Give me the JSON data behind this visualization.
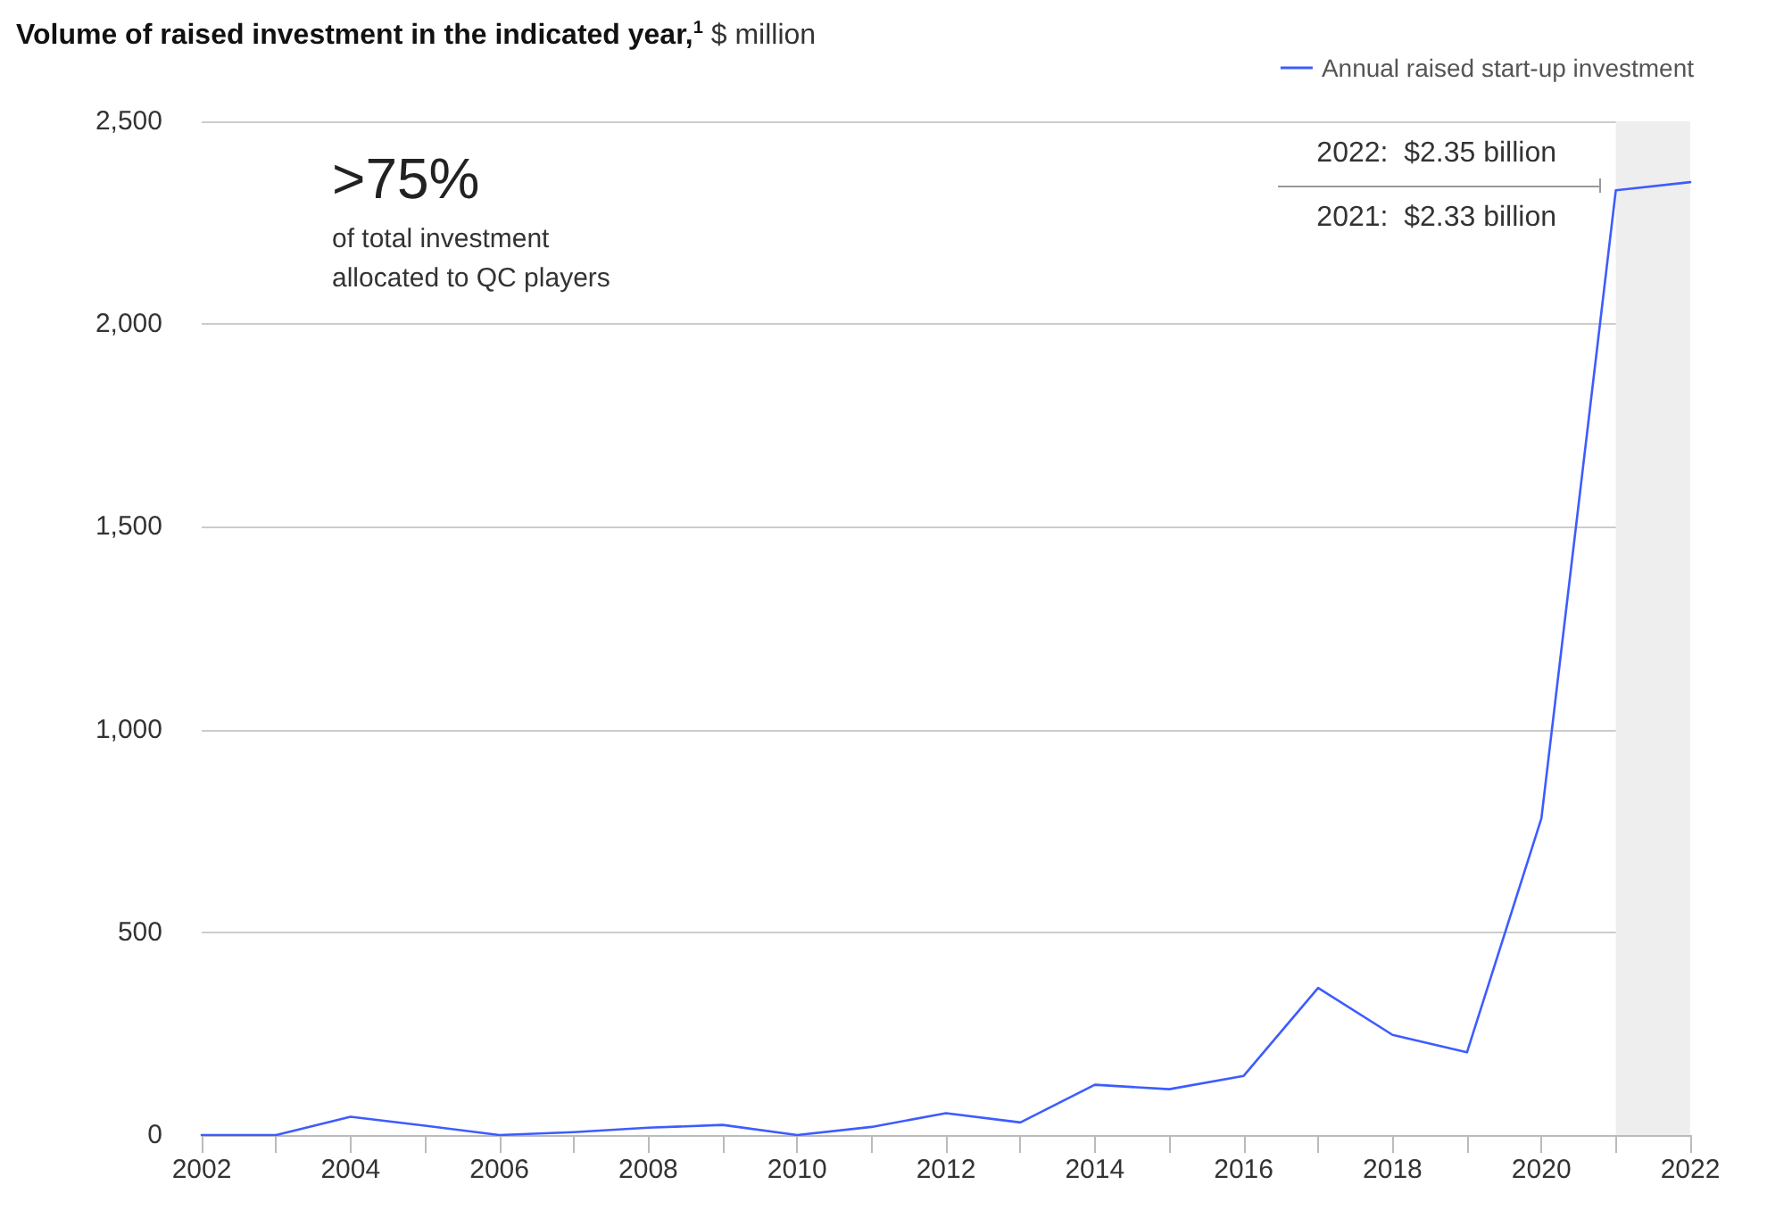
{
  "chart_data": {
    "type": "line",
    "title": "Volume of raised investment in the indicated year,$^{1}$",
    "subtitle": "$ million",
    "x": [
      2002,
      2003,
      2004,
      2005,
      2006,
      2007,
      2008,
      2009,
      2010,
      2011,
      2012,
      2013,
      2014,
      2015,
      2016,
      2017,
      2018,
      2019,
      2020,
      2021,
      2022
    ],
    "series": [
      {
        "name": "Annual raised start-up investment",
        "color": "#3d5cff",
        "values": [
          0,
          0,
          45,
          23,
          0,
          7,
          18,
          25,
          0,
          20,
          54,
          31,
          124,
          113,
          146,
          363,
          247,
          204,
          781,
          2330,
          2350
        ]
      }
    ],
    "xlim": [
      2002,
      2022
    ],
    "xticks": [
      2002,
      {
        "value": 2003,
        "label": null
      },
      2004,
      {
        "value": 2005,
        "label": null
      },
      2006,
      {
        "value": 2007,
        "label": null
      },
      2008,
      {
        "value": 2009,
        "label": null
      },
      2010,
      {
        "value": 2011,
        "label": null
      },
      2012,
      {
        "value": 2013,
        "label": null
      },
      2014,
      {
        "value": 2015,
        "label": null
      },
      2016,
      {
        "value": 2017,
        "label": null
      },
      2018,
      {
        "value": 2019,
        "label": null
      },
      2020,
      {
        "value": 2021,
        "label": null
      },
      2022
    ],
    "ylim": [
      0,
      2500
    ],
    "yticks": [
      0,
      500,
      {
        "value": 1000,
        "label": "1,000"
      },
      {
        "value": 1500,
        "label": "1,500"
      },
      {
        "value": 2000,
        "label": "2,000"
      },
      {
        "value": 2500,
        "label": "2,500"
      }
    ],
    "bands": [
      {
        "axis": "x",
        "from": 2021,
        "to": 2022,
        "color": "#eeeeee"
      }
    ],
    "annotations": [
      ">75%",
      "of total investment allocated to QC players",
      "2022:  $2.35 billion",
      "2021:  $2.33 billion"
    ],
    "grid": "y",
    "legend": "top right",
    "marker": "none",
    "line_style": "solid"
  }
}
